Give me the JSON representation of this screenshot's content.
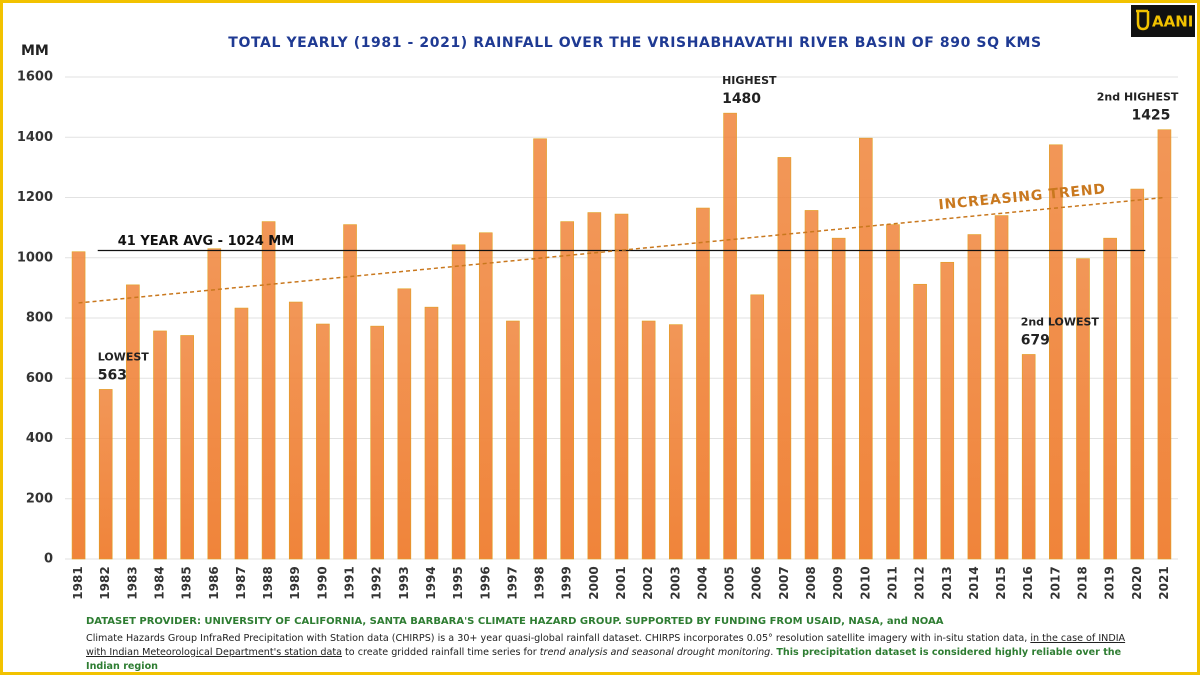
{
  "chart_data": {
    "type": "bar",
    "title": "TOTAL YEARLY (1981 - 2021) RAINFALL OVER THE VRISHABHAVATHI RIVER BASIN OF 890 SQ KMS",
    "y_label": "MM",
    "categories": [
      "1981",
      "1982",
      "1983",
      "1984",
      "1985",
      "1986",
      "1987",
      "1988",
      "1989",
      "1990",
      "1991",
      "1992",
      "1993",
      "1994",
      "1995",
      "1996",
      "1997",
      "1998",
      "1999",
      "2000",
      "2001",
      "2002",
      "2003",
      "2004",
      "2005",
      "2006",
      "2007",
      "2008",
      "2009",
      "2010",
      "2011",
      "2012",
      "2013",
      "2014",
      "2015",
      "2016",
      "2017",
      "2018",
      "2019",
      "2020",
      "2021"
    ],
    "values": [
      1020,
      563,
      910,
      757,
      742,
      1030,
      833,
      1120,
      853,
      780,
      1110,
      773,
      897,
      836,
      1043,
      1083,
      790,
      1395,
      1120,
      1150,
      1145,
      790,
      778,
      1165,
      1480,
      877,
      1333,
      1157,
      1065,
      1397,
      1110,
      912,
      985,
      1077,
      1140,
      679,
      1375,
      997,
      1065,
      1228,
      1425
    ],
    "color": "#f0843a",
    "ylim": [
      0,
      1600
    ],
    "yticks": [
      0,
      200,
      400,
      600,
      800,
      1000,
      1200,
      1400,
      1600
    ],
    "grid": true,
    "average": {
      "label": "41 YEAR AVG - 1024 MM",
      "value": 1024
    },
    "trend": {
      "label": "INCREASING TREND",
      "start": 850,
      "end": 1200,
      "color": "#c9781e"
    },
    "annotations": [
      {
        "text": "LOWEST",
        "category": "1982"
      },
      {
        "text": "HIGHEST",
        "category": "2005"
      },
      {
        "text": "2nd LOWEST",
        "category": "2016"
      },
      {
        "text": "2nd HIGHEST",
        "category": "2021"
      }
    ]
  },
  "logo": "AANI",
  "footer": {
    "provider": "DATASET PROVIDER: UNIVERSITY OF CALIFORNIA, SANTA BARBARA'S CLIMATE HAZARD GROUP. SUPPORTED BY FUNDING FROM USAID, NASA, and NOAA",
    "parts": [
      "Climate Hazards Group InfraRed Precipitation with Station data (CHIRPS) is a 30+ year quasi-global rainfall dataset. CHIRPS incorporates 0.05° resolution satellite imagery with in-situ station data, ",
      "in the case of INDIA with Indian Meteorological Department's station data",
      " to create gridded rainfall time series for ",
      "trend analysis and seasonal drought monitoring",
      ". ",
      "This precipitation dataset is considered highly reliable over the Indian region"
    ]
  }
}
